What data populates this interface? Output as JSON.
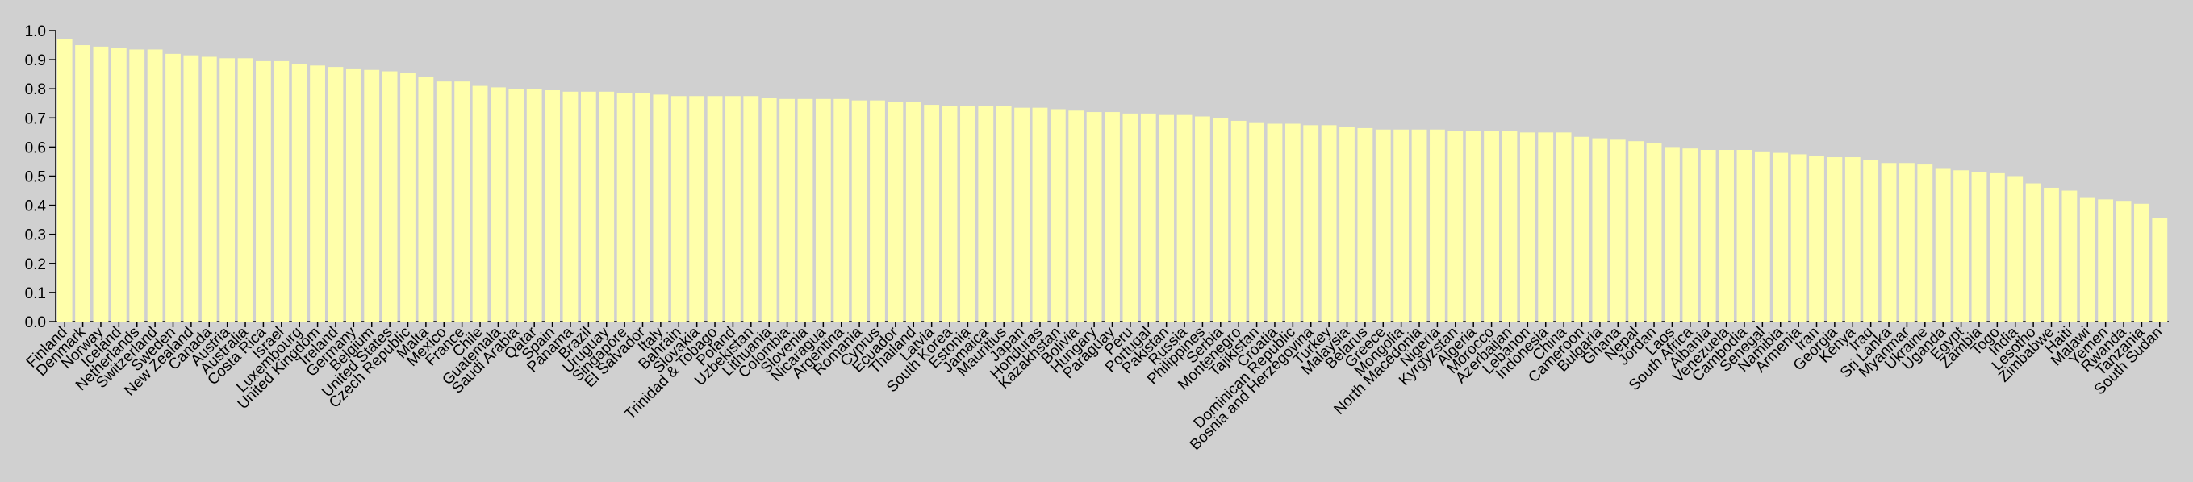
{
  "chart_data": {
    "type": "bar",
    "color": "#ffffaa",
    "categories": [
      "Finland",
      "Denmark",
      "Norway",
      "Iceland",
      "Netherlands",
      "Switzerland",
      "Sweden",
      "New Zealand",
      "Canada",
      "Austria",
      "Australia",
      "Costa Rica",
      "Israel",
      "Luxembourg",
      "United Kingdom",
      "Ireland",
      "Germany",
      "Belgium",
      "United States",
      "Czech Republic",
      "Malta",
      "Mexico",
      "France",
      "Chile",
      "Guatemala",
      "Saudi Arabia",
      "Qatar",
      "Spain",
      "Panama",
      "Brazil",
      "Uruguay",
      "Singapore",
      "El Salvador",
      "Italy",
      "Bahrain",
      "Slovakia",
      "Trinidad & Tobago",
      "Poland",
      "Uzbekistan",
      "Lithuania",
      "Colombia",
      "Slovenia",
      "Nicaragua",
      "Argentina",
      "Romania",
      "Cyprus",
      "Ecuador",
      "Thailand",
      "Latvia",
      "South Korea",
      "Estonia",
      "Jamaica",
      "Mauritius",
      "Japan",
      "Honduras",
      "Kazakhstan",
      "Bolivia",
      "Hungary",
      "Paraguay",
      "Peru",
      "Portugal",
      "Pakistan",
      "Russia",
      "Philippines",
      "Serbia",
      "Montenegro",
      "Tajikistan",
      "Croatia",
      "Dominican Republic",
      "Bosnia and Herzegovina",
      "Turkey",
      "Malaysia",
      "Belarus",
      "Greece",
      "Mongolia",
      "North Macedonia",
      "Nigeria",
      "Kyrgyzstan",
      "Algeria",
      "Morocco",
      "Azerbaijan",
      "Lebanon",
      "Indonesia",
      "China",
      "Cameroon",
      "Bulgaria",
      "Ghana",
      "Nepal",
      "Jordan",
      "Laos",
      "South Africa",
      "Albania",
      "Venezuela",
      "Cambodia",
      "Senegal",
      "Namibia",
      "Armenia",
      "Iran",
      "Georgia",
      "Kenya",
      "Iraq",
      "Sri Lanka",
      "Myanmar",
      "Ukraine",
      "Uganda",
      "Egypt",
      "Zambia",
      "Togo",
      "India",
      "Lesotho",
      "Zimbabwe",
      "Haiti",
      "Malawi",
      "Yemen",
      "Rwanda",
      "Tanzania",
      "South Sudan"
    ],
    "values": [
      0.97,
      0.95,
      0.945,
      0.94,
      0.935,
      0.935,
      0.92,
      0.915,
      0.91,
      0.905,
      0.905,
      0.895,
      0.895,
      0.885,
      0.88,
      0.875,
      0.87,
      0.865,
      0.86,
      0.855,
      0.84,
      0.825,
      0.825,
      0.81,
      0.805,
      0.8,
      0.8,
      0.795,
      0.79,
      0.79,
      0.79,
      0.785,
      0.785,
      0.78,
      0.775,
      0.775,
      0.775,
      0.775,
      0.775,
      0.77,
      0.765,
      0.765,
      0.765,
      0.765,
      0.76,
      0.76,
      0.755,
      0.755,
      0.745,
      0.74,
      0.74,
      0.74,
      0.74,
      0.735,
      0.735,
      0.73,
      0.725,
      0.72,
      0.72,
      0.715,
      0.715,
      0.71,
      0.71,
      0.705,
      0.7,
      0.69,
      0.685,
      0.68,
      0.68,
      0.675,
      0.675,
      0.67,
      0.665,
      0.66,
      0.66,
      0.66,
      0.66,
      0.655,
      0.655,
      0.655,
      0.655,
      0.65,
      0.65,
      0.65,
      0.635,
      0.63,
      0.625,
      0.62,
      0.615,
      0.6,
      0.595,
      0.59,
      0.59,
      0.59,
      0.585,
      0.58,
      0.575,
      0.57,
      0.565,
      0.565,
      0.555,
      0.545,
      0.545,
      0.54,
      0.525,
      0.52,
      0.515,
      0.51,
      0.5,
      0.475,
      0.46,
      0.45,
      0.425,
      0.42,
      0.415,
      0.405,
      0.355
    ],
    "ylim": [
      0,
      1
    ],
    "yticks": [
      {
        "value": 0,
        "label": "0.0"
      },
      0.1,
      0.2,
      0.3,
      0.4,
      0.5,
      0.6,
      0.7,
      0.8,
      0.9,
      {
        "value": 1,
        "label": "1.0"
      }
    ]
  }
}
